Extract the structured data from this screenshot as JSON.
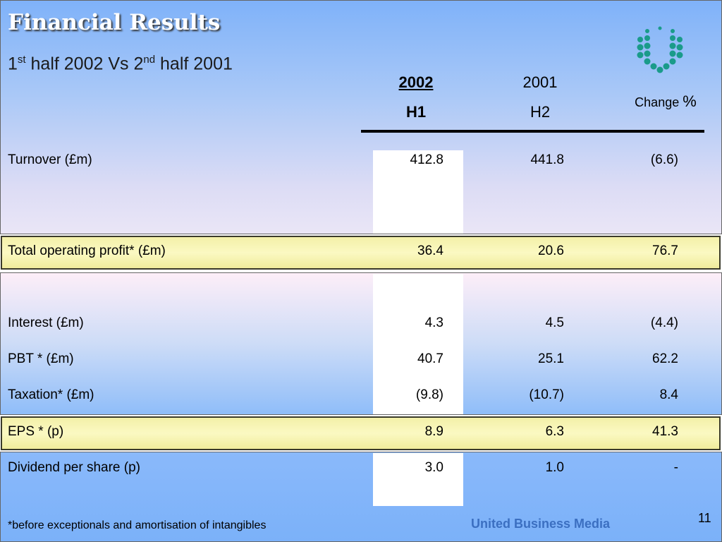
{
  "slide": {
    "title": "Financial Results",
    "subtitle_part1": "1",
    "subtitle_sup1": "st",
    "subtitle_part2": " half 2002 Vs 2",
    "subtitle_sup2": "nd",
    "subtitle_part3": " half 2001",
    "page_number": "11",
    "brand": "United Business Media",
    "footnote": "*before exceptionals and amortisation of intangibles"
  },
  "table": {
    "columns": [
      {
        "year": "2002",
        "half": "H1"
      },
      {
        "year": "2001",
        "half": "H2"
      },
      {
        "change_word": "Change",
        "change_symbol": "%"
      }
    ],
    "rows": [
      {
        "label": "Turnover (£m)",
        "c1": "412.8",
        "c2": "441.8",
        "c3": "(6.6)"
      },
      {
        "label": "Total operating profit* (£m)",
        "c1": "36.4",
        "c2": "20.6",
        "c3": "76.7"
      },
      {
        "label": "Interest (£m)",
        "c1": "4.3",
        "c2": "4.5",
        "c3": "(4.4)"
      },
      {
        "label": "PBT * (£m)",
        "c1": "40.7",
        "c2": "25.1",
        "c3": "62.2"
      },
      {
        "label": "Taxation* (£m)",
        "c1": "(9.8)",
        "c2": "(10.7)",
        "c3": "8.4"
      },
      {
        "label": "EPS * (p)",
        "c1": "8.9",
        "c2": "6.3",
        "c3": "41.3"
      },
      {
        "label": "Dividend per share (p)",
        "c1": "3.0",
        "c2": "1.0",
        "c3": "-"
      }
    ]
  },
  "colors": {
    "logo": "#1a9b8a",
    "brand": "#3b6fc1",
    "highlight": "#f7f4b0"
  },
  "icons": {
    "logo": "company-logo-dots"
  }
}
